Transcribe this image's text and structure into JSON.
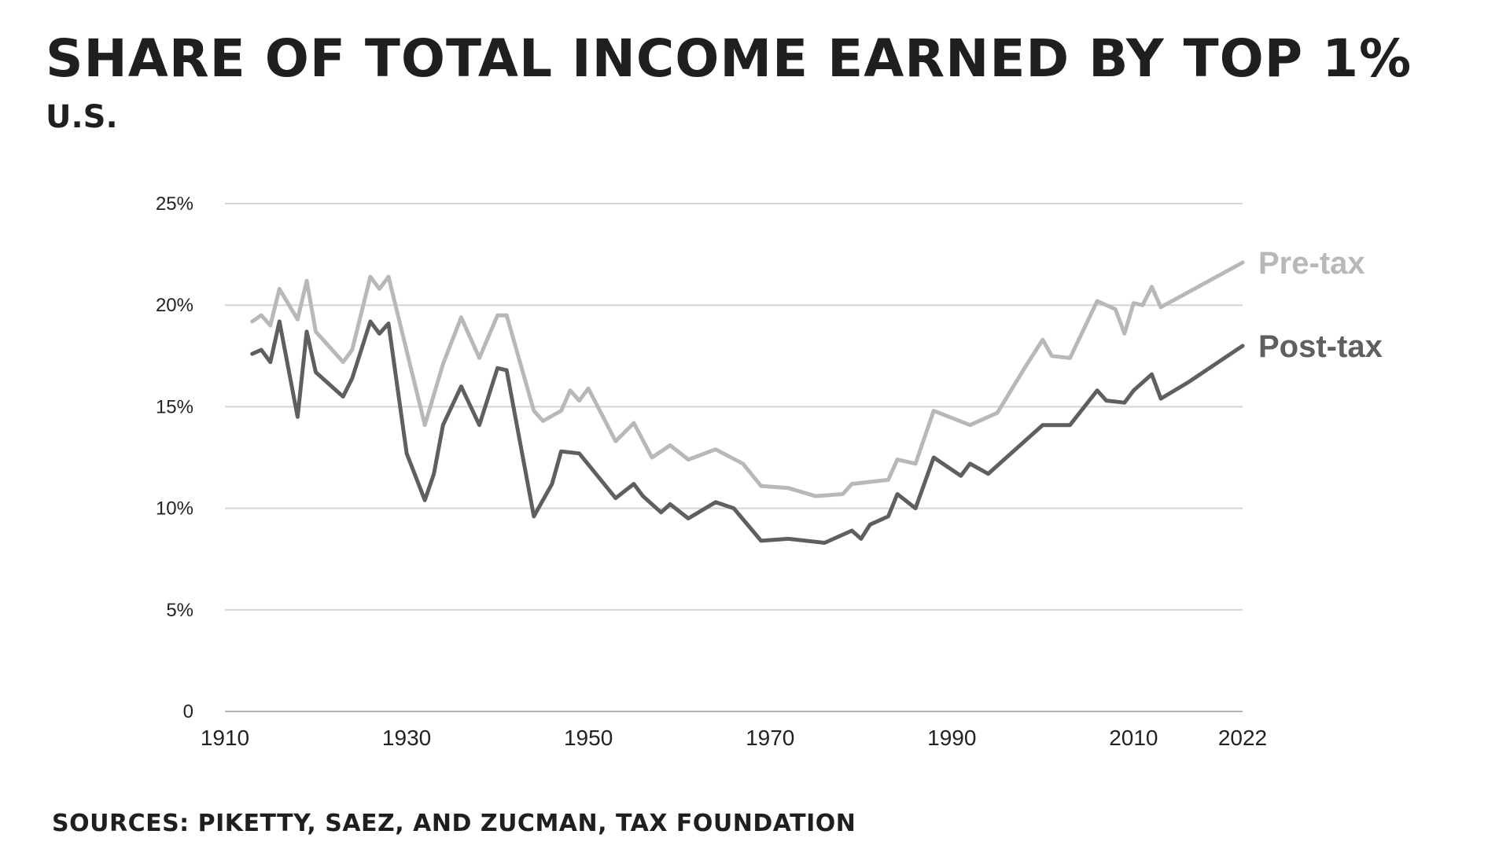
{
  "header": {
    "title": "SHARE OF TOTAL INCOME EARNED BY TOP 1%",
    "subtitle": "U.S."
  },
  "footer": {
    "source": "SOURCES: PIKETTY, SAEZ, AND ZUCMAN, TAX FOUNDATION"
  },
  "chart_data": {
    "type": "line",
    "title": "SHARE OF TOTAL INCOME EARNED BY TOP 1%",
    "subtitle": "U.S.",
    "xlabel": "",
    "ylabel": "",
    "xlim": [
      1910,
      2022
    ],
    "ylim": [
      0,
      25
    ],
    "grid": true,
    "legend": "direct labels at right end of lines",
    "y_ticks": [
      {
        "value": 0,
        "label": "0"
      },
      {
        "value": 5,
        "label": "5%"
      },
      {
        "value": 10,
        "label": "10%"
      },
      {
        "value": 15,
        "label": "15%"
      },
      {
        "value": 20,
        "label": "20%"
      },
      {
        "value": 25,
        "label": "25%"
      }
    ],
    "x_ticks": [
      {
        "value": 1910,
        "label": "1910"
      },
      {
        "value": 1930,
        "label": "1930"
      },
      {
        "value": 1950,
        "label": "1950"
      },
      {
        "value": 1970,
        "label": "1970"
      },
      {
        "value": 1990,
        "label": "1990"
      },
      {
        "value": 2010,
        "label": "2010"
      },
      {
        "value": 2022,
        "label": "2022"
      }
    ],
    "series": [
      {
        "name": "Pre-tax",
        "color": "#b8b8b8",
        "points": [
          [
            1913,
            19.2
          ],
          [
            1914,
            19.5
          ],
          [
            1915,
            19.0
          ],
          [
            1916,
            20.8
          ],
          [
            1918,
            19.3
          ],
          [
            1919,
            21.2
          ],
          [
            1920,
            18.7
          ],
          [
            1923,
            17.2
          ],
          [
            1924,
            17.8
          ],
          [
            1926,
            21.4
          ],
          [
            1927,
            20.8
          ],
          [
            1928,
            21.4
          ],
          [
            1932,
            14.1
          ],
          [
            1934,
            17.1
          ],
          [
            1936,
            19.4
          ],
          [
            1938,
            17.4
          ],
          [
            1940,
            19.5
          ],
          [
            1941,
            19.5
          ],
          [
            1944,
            14.8
          ],
          [
            1945,
            14.3
          ],
          [
            1947,
            14.8
          ],
          [
            1948,
            15.8
          ],
          [
            1949,
            15.3
          ],
          [
            1950,
            15.9
          ],
          [
            1953,
            13.3
          ],
          [
            1955,
            14.2
          ],
          [
            1957,
            12.5
          ],
          [
            1959,
            13.1
          ],
          [
            1961,
            12.4
          ],
          [
            1964,
            12.9
          ],
          [
            1967,
            12.2
          ],
          [
            1969,
            11.1
          ],
          [
            1972,
            11.0
          ],
          [
            1975,
            10.6
          ],
          [
            1978,
            10.7
          ],
          [
            1979,
            11.2
          ],
          [
            1983,
            11.4
          ],
          [
            1984,
            12.4
          ],
          [
            1986,
            12.2
          ],
          [
            1988,
            14.8
          ],
          [
            1992,
            14.1
          ],
          [
            1995,
            14.7
          ],
          [
            1998,
            16.9
          ],
          [
            2000,
            18.3
          ],
          [
            2001,
            17.5
          ],
          [
            2003,
            17.4
          ],
          [
            2006,
            20.2
          ],
          [
            2008,
            19.8
          ],
          [
            2009,
            18.6
          ],
          [
            2010,
            20.1
          ],
          [
            2011,
            20.0
          ],
          [
            2012,
            20.9
          ],
          [
            2013,
            19.9
          ],
          [
            2022,
            22.1
          ]
        ]
      },
      {
        "name": "Post-tax",
        "color": "#5f5f5f",
        "points": [
          [
            1913,
            17.6
          ],
          [
            1914,
            17.8
          ],
          [
            1915,
            17.2
          ],
          [
            1916,
            19.2
          ],
          [
            1918,
            14.5
          ],
          [
            1919,
            18.7
          ],
          [
            1920,
            16.7
          ],
          [
            1923,
            15.5
          ],
          [
            1924,
            16.4
          ],
          [
            1926,
            19.2
          ],
          [
            1927,
            18.6
          ],
          [
            1928,
            19.1
          ],
          [
            1930,
            12.7
          ],
          [
            1932,
            10.4
          ],
          [
            1933,
            11.7
          ],
          [
            1934,
            14.1
          ],
          [
            1936,
            16.0
          ],
          [
            1938,
            14.1
          ],
          [
            1940,
            16.9
          ],
          [
            1941,
            16.8
          ],
          [
            1944,
            9.6
          ],
          [
            1946,
            11.2
          ],
          [
            1947,
            12.8
          ],
          [
            1949,
            12.7
          ],
          [
            1953,
            10.5
          ],
          [
            1955,
            11.2
          ],
          [
            1956,
            10.6
          ],
          [
            1958,
            9.8
          ],
          [
            1959,
            10.2
          ],
          [
            1961,
            9.5
          ],
          [
            1964,
            10.3
          ],
          [
            1966,
            10.0
          ],
          [
            1969,
            8.4
          ],
          [
            1972,
            8.5
          ],
          [
            1976,
            8.3
          ],
          [
            1979,
            8.9
          ],
          [
            1980,
            8.5
          ],
          [
            1981,
            9.2
          ],
          [
            1983,
            9.6
          ],
          [
            1984,
            10.7
          ],
          [
            1986,
            10.0
          ],
          [
            1988,
            12.5
          ],
          [
            1991,
            11.6
          ],
          [
            1992,
            12.2
          ],
          [
            1994,
            11.7
          ],
          [
            2000,
            14.1
          ],
          [
            2003,
            14.1
          ],
          [
            2006,
            15.8
          ],
          [
            2007,
            15.3
          ],
          [
            2009,
            15.2
          ],
          [
            2010,
            15.8
          ],
          [
            2012,
            16.6
          ],
          [
            2013,
            15.4
          ],
          [
            2016,
            16.2
          ],
          [
            2022,
            18.0
          ]
        ]
      }
    ]
  }
}
